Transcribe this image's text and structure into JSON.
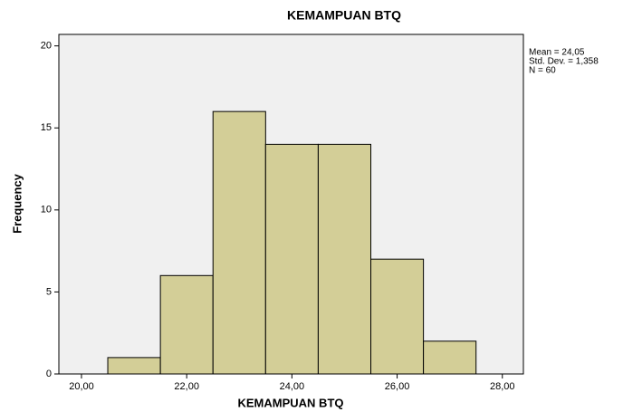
{
  "chart_data": {
    "type": "histogram",
    "title": "KEMAMPUAN BTQ",
    "x_label": "KEMAMPUAN BTQ",
    "y_label": "Frequency",
    "bins": [
      20.5,
      21.5,
      22.5,
      23.5,
      24.5,
      25.5,
      26.5,
      27.5
    ],
    "values": [
      1,
      6,
      16,
      14,
      14,
      7,
      2
    ],
    "color": "#d3ce97",
    "xlim": [
      19.57,
      28.4
    ],
    "xticks": [
      {
        "value": 20,
        "label": "20,00"
      },
      {
        "value": 22,
        "label": "22,00"
      },
      {
        "value": 24,
        "label": "24,00"
      },
      {
        "value": 26,
        "label": "26,00"
      },
      {
        "value": 28,
        "label": "28,00"
      }
    ],
    "ylim": [
      0,
      20.7
    ],
    "yticks": [
      0,
      5,
      10,
      15,
      20
    ],
    "annotations": [
      "Mean = 24,05",
      "Std. Dev. = 1,358",
      "N = 60"
    ]
  }
}
